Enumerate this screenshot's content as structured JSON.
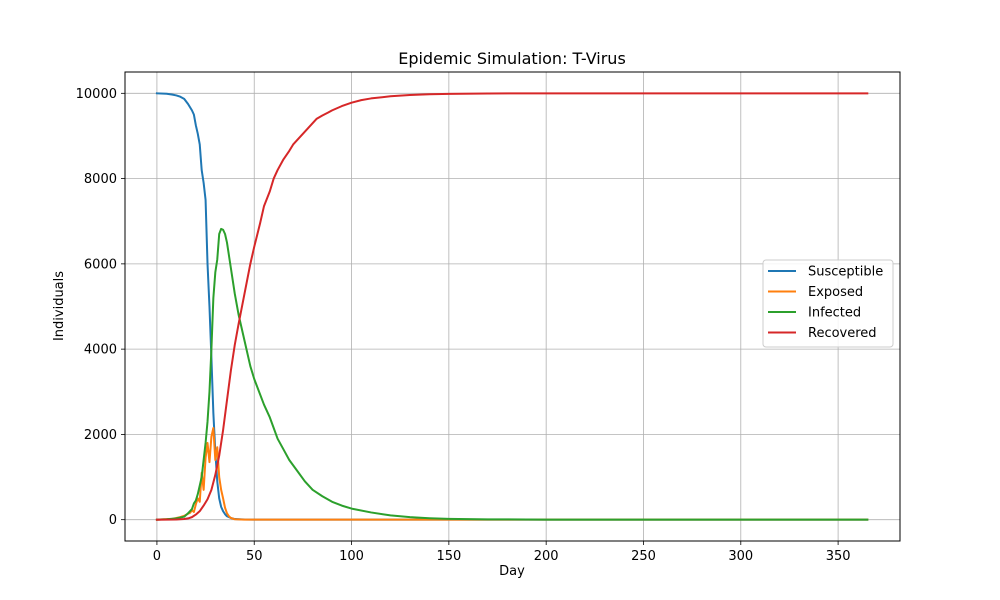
{
  "chart_data": {
    "type": "line",
    "title": "Epidemic Simulation: T-Virus",
    "xlabel": "Day",
    "ylabel": "Individuals",
    "xlim": [
      -16.4,
      381.8
    ],
    "ylim": [
      -500,
      10500
    ],
    "xticks": [
      0,
      50,
      100,
      150,
      200,
      250,
      300,
      350
    ],
    "yticks": [
      0,
      2000,
      4000,
      6000,
      8000,
      10000
    ],
    "grid": true,
    "legend_position": "center-right",
    "series": [
      {
        "name": "Susceptible",
        "color": "#1f77b4",
        "x": [
          0,
          5,
          8,
          10,
          12,
          14,
          16,
          18,
          19,
          20,
          21,
          22,
          23,
          24,
          25,
          26,
          27,
          28,
          29,
          30,
          31,
          32,
          33,
          34,
          35,
          36,
          38,
          40,
          45,
          50,
          365
        ],
        "y": [
          10000,
          9990,
          9970,
          9950,
          9920,
          9870,
          9750,
          9600,
          9500,
          9250,
          9050,
          8800,
          8200,
          7900,
          7500,
          6000,
          5000,
          3800,
          2500,
          1600,
          900,
          500,
          300,
          200,
          130,
          80,
          40,
          15,
          5,
          0,
          0
        ]
      },
      {
        "name": "Exposed",
        "color": "#ff7f0e",
        "x": [
          0,
          8,
          10,
          12,
          14,
          16,
          17,
          18,
          19,
          20,
          21,
          22,
          23,
          24,
          25,
          26,
          27,
          28,
          29,
          30,
          31,
          32,
          33,
          34,
          35,
          36,
          37,
          38,
          40,
          45,
          50,
          365
        ],
        "y": [
          0,
          20,
          40,
          60,
          90,
          140,
          160,
          220,
          180,
          360,
          500,
          420,
          1100,
          700,
          1450,
          1800,
          1350,
          1950,
          2150,
          1400,
          1700,
          1000,
          700,
          500,
          280,
          150,
          80,
          40,
          10,
          0,
          0,
          0
        ]
      },
      {
        "name": "Infected",
        "color": "#2ca02c",
        "x": [
          0,
          5,
          10,
          14,
          16,
          18,
          19,
          20,
          21,
          22,
          23,
          24,
          25,
          26,
          27,
          28,
          29,
          30,
          31,
          32,
          33,
          34,
          35,
          36,
          37,
          38,
          40,
          42,
          45,
          48,
          50,
          55,
          58,
          60,
          62,
          65,
          68,
          72,
          76,
          80,
          85,
          90,
          95,
          100,
          110,
          120,
          130,
          140,
          150,
          170,
          200,
          250,
          300,
          365
        ],
        "y": [
          0,
          10,
          30,
          70,
          150,
          250,
          380,
          450,
          600,
          800,
          1000,
          1400,
          1800,
          2300,
          3000,
          4000,
          5200,
          5800,
          6100,
          6700,
          6820,
          6800,
          6700,
          6500,
          6200,
          5900,
          5300,
          4800,
          4200,
          3600,
          3300,
          2700,
          2400,
          2150,
          1900,
          1650,
          1400,
          1150,
          900,
          700,
          550,
          420,
          330,
          260,
          170,
          100,
          60,
          35,
          20,
          8,
          2,
          0,
          0,
          0
        ]
      },
      {
        "name": "Recovered",
        "color": "#d62728",
        "x": [
          0,
          10,
          14,
          16,
          18,
          20,
          22,
          24,
          26,
          28,
          30,
          32,
          34,
          36,
          38,
          40,
          42,
          45,
          48,
          50,
          53,
          55,
          58,
          60,
          62,
          65,
          68,
          70,
          72,
          75,
          78,
          80,
          82,
          85,
          88,
          90,
          95,
          100,
          105,
          110,
          120,
          130,
          140,
          150,
          170,
          200,
          250,
          300,
          365
        ],
        "y": [
          0,
          5,
          15,
          30,
          60,
          120,
          200,
          330,
          480,
          700,
          1050,
          1500,
          2100,
          2800,
          3500,
          4100,
          4600,
          5300,
          6000,
          6400,
          6950,
          7350,
          7700,
          8000,
          8200,
          8450,
          8650,
          8800,
          8900,
          9050,
          9200,
          9300,
          9400,
          9480,
          9550,
          9600,
          9700,
          9780,
          9840,
          9880,
          9930,
          9960,
          9978,
          9988,
          9996,
          10000,
          10000,
          10000,
          10000
        ]
      }
    ]
  }
}
